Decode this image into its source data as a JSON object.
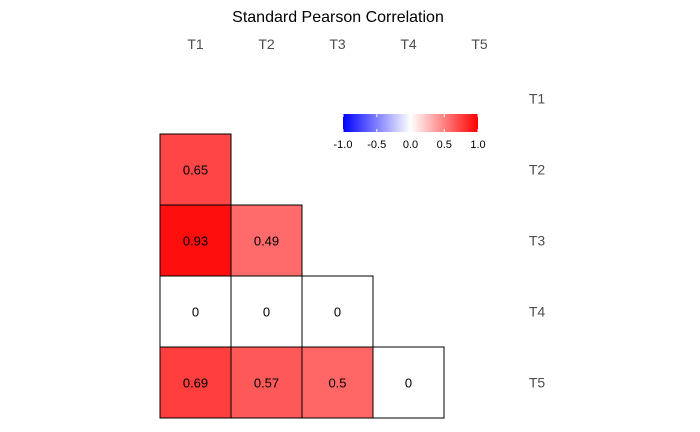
{
  "chart_data": {
    "type": "heatmap",
    "title": "Standard Pearson Correlation",
    "variables": [
      "T1",
      "T2",
      "T3",
      "T4",
      "T5"
    ],
    "layout": "lower-triangle",
    "cells": [
      {
        "row": "T2",
        "col": "T1",
        "value": 0.65
      },
      {
        "row": "T3",
        "col": "T1",
        "value": 0.93
      },
      {
        "row": "T3",
        "col": "T2",
        "value": 0.49
      },
      {
        "row": "T4",
        "col": "T1",
        "value": 0
      },
      {
        "row": "T4",
        "col": "T2",
        "value": 0
      },
      {
        "row": "T4",
        "col": "T3",
        "value": 0
      },
      {
        "row": "T5",
        "col": "T1",
        "value": 0.69
      },
      {
        "row": "T5",
        "col": "T2",
        "value": 0.57
      },
      {
        "row": "T5",
        "col": "T3",
        "value": 0.5
      },
      {
        "row": "T5",
        "col": "T4",
        "value": 0
      }
    ],
    "cell_labels": [
      "0.65",
      "0.93",
      "0.49",
      "0",
      "0",
      "0",
      "0.69",
      "0.57",
      "0.5",
      "0"
    ],
    "color_scale": {
      "range": [
        -1.0,
        1.0
      ],
      "low": "#0000ff",
      "mid": "#ffffff",
      "high": "#ff0000",
      "ticks": [
        "-1.0",
        "-0.5",
        "0.0",
        "0.5",
        "1.0"
      ],
      "legend_position": "top-right"
    },
    "x_axis_position": "top",
    "y_axis_position": "right"
  }
}
